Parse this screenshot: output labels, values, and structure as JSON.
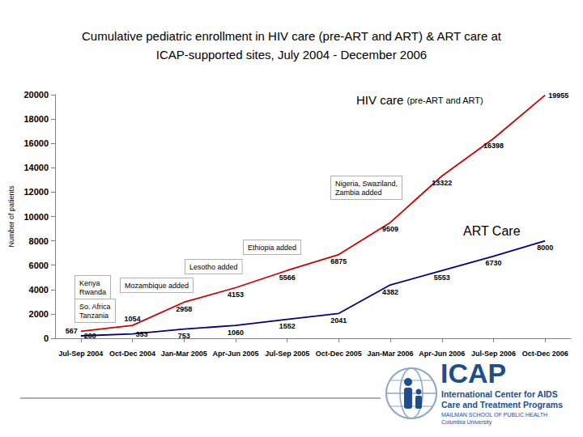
{
  "chart_data": {
    "type": "line",
    "title": "Cumulative pediatric enrollment in HIV care (pre-ART and ART) & ART care at\nICAP-supported sites, July 2004 - December 2006",
    "y_label": "Number of patients",
    "categories": [
      "Jul-Sep 2004",
      "Oct-Dec 2004",
      "Jan-Mar 2005",
      "Apr-Jun 2005",
      "Jul-Sep 2005",
      "Oct-Dec 2005",
      "Jan-Mar 2006",
      "Apr-Jun 2006",
      "Jul-Sep 2006",
      "Oct-Dec 2006"
    ],
    "series": [
      {
        "name": "HIV care (pre-ART and ART)",
        "color": "#cc0000",
        "values": [
          567,
          1054,
          2958,
          4153,
          5566,
          6875,
          9509,
          13322,
          16398,
          19955
        ]
      },
      {
        "name": "ART Care",
        "color": "#000080",
        "values": [
          200,
          353,
          753,
          1060,
          1552,
          2041,
          4382,
          5553,
          6730,
          8000
        ]
      }
    ],
    "ylim": [
      0,
      20000
    ],
    "yticks": [
      0,
      2000,
      4000,
      6000,
      8000,
      10000,
      12000,
      14000,
      16000,
      18000,
      20000
    ],
    "grid": false,
    "data_labels": true,
    "annotations": [
      "Kenya\nRwanda",
      "So. Africa\nTanzania",
      "Mozambique added",
      "Lesotho added",
      "Ethiopia added",
      "Nigeria, Swaziland,\nZambia added"
    ]
  },
  "logo": {
    "name": "ICAP",
    "lines": [
      "International Center for AIDS",
      "Care and Treatment Programs"
    ],
    "school": "MAILMAN SCHOOL OF PUBLIC HEALTH",
    "university": "Columbia University"
  }
}
